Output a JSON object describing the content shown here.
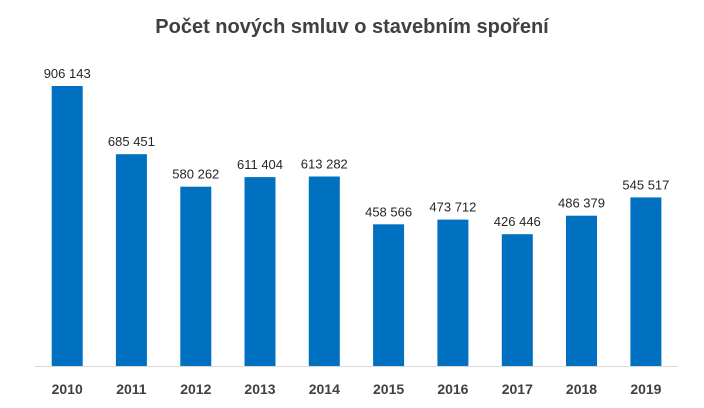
{
  "chart_data": {
    "type": "bar",
    "title": "Počet nových smluv o stavebním spoření",
    "categories": [
      "2010",
      "2011",
      "2012",
      "2013",
      "2014",
      "2015",
      "2016",
      "2017",
      "2018",
      "2019"
    ],
    "values": [
      906143,
      685451,
      580262,
      611404,
      613282,
      458566,
      473712,
      426446,
      486379,
      545517
    ],
    "value_labels": [
      "906 143",
      "685 451",
      "580 262",
      "611 404",
      "613 282",
      "458 566",
      "473 712",
      "426 446",
      "486 379",
      "545 517"
    ],
    "ylim": [
      0,
      906143
    ],
    "grid": false,
    "legend": "none",
    "bar_color": "#0070C0",
    "axis_color": "#D9D9D9"
  }
}
